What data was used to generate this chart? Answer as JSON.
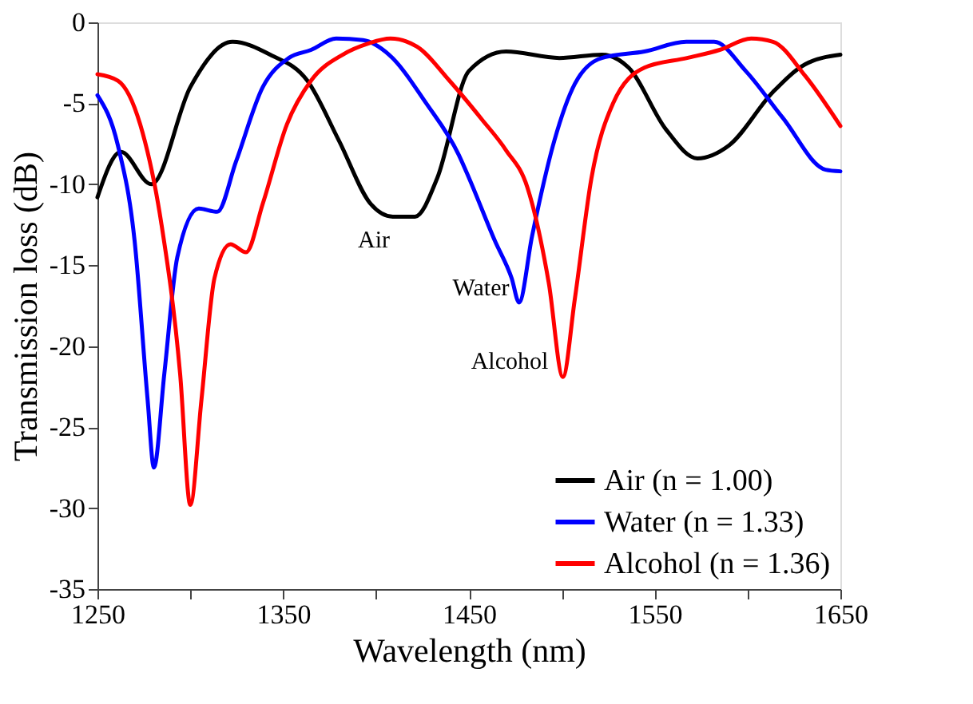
{
  "chart_data": {
    "type": "line",
    "xlabel": "Wavelength (nm)",
    "ylabel": "Transmission loss (dB)",
    "xlim": [
      1250,
      1650
    ],
    "xticks": [
      1250,
      {
        "value": 1300,
        "label": null
      },
      1350,
      {
        "value": 1400,
        "label": null
      },
      1450,
      {
        "value": 1500,
        "label": null
      },
      1550,
      {
        "value": 1600,
        "label": null
      },
      1650
    ],
    "ylim": [
      -35,
      0
    ],
    "yticks": [
      -35,
      -30,
      -25,
      -20,
      -15,
      -10,
      -5,
      0
    ],
    "legend": "bottom right",
    "grid": false,
    "marker": "none",
    "line_style": "solid",
    "series": [
      {
        "name": "Air (n = 1.00)",
        "color": "#000000",
        "x": [
          1250,
          1262.6,
          1279,
          1300,
          1322.7,
          1343,
          1363,
          1380,
          1397,
          1409,
          1421,
          1433,
          1450,
          1470,
          1498.7,
          1521.6,
          1536,
          1556,
          1573,
          1590,
          1613.7,
          1630.9,
          1650
        ],
        "values": [
          -10.8,
          -8.0,
          -10.0,
          -4.0,
          -1.2,
          -2.0,
          -3.6,
          -7.3,
          -11.2,
          -12.0,
          -12.0,
          -9.6,
          -3.0,
          -1.8,
          -2.2,
          -2.0,
          -2.8,
          -6.6,
          -8.4,
          -7.6,
          -4.3,
          -2.6,
          -2.0
        ]
      },
      {
        "name": "Water (n = 1.33)",
        "color": "#0000ff",
        "x": [
          1250,
          1261,
          1270,
          1277,
          1280.4,
          1286,
          1293,
          1304.5,
          1314.5,
          1324.6,
          1339,
          1353,
          1365,
          1378.5,
          1393,
          1407,
          1427,
          1444.6,
          1450,
          1464,
          1473,
          1477,
          1484,
          1496,
          1507,
          1521.6,
          1544.5,
          1567,
          1582,
          1599,
          1619,
          1642,
          1650
        ],
        "values": [
          -4.5,
          -7.6,
          -13.5,
          -23.3,
          -27.5,
          -21.7,
          -14.5,
          -11.5,
          -11.7,
          -8.6,
          -4.0,
          -2.2,
          -1.7,
          -1.0,
          -1.1,
          -2.0,
          -5.0,
          -8.2,
          -9.6,
          -13.5,
          -15.8,
          -17.3,
          -13.2,
          -7.3,
          -3.8,
          -2.2,
          -1.8,
          -1.2,
          -1.2,
          -3.0,
          -5.9,
          -9.1,
          -9.2
        ]
      },
      {
        "name": "Alcohol (n = 1.36)",
        "color": "#ff0000",
        "x": [
          1250,
          1261,
          1273,
          1284.5,
          1294.5,
          1300,
          1306,
          1313,
          1321.6,
          1330,
          1339,
          1352,
          1365,
          1382,
          1396,
          1407.7,
          1422,
          1439.5,
          1457,
          1470,
          1481.5,
          1493,
          1500.6,
          1507,
          1516,
          1527.6,
          1544.5,
          1567.5,
          1585,
          1602,
          1613.7,
          1631,
          1650
        ],
        "values": [
          -3.2,
          -3.6,
          -6.3,
          -12.5,
          -21.7,
          -29.8,
          -23.3,
          -15.8,
          -13.7,
          -14.2,
          -11.2,
          -6.3,
          -3.6,
          -2.0,
          -1.3,
          -1.0,
          -1.5,
          -3.6,
          -6.0,
          -7.9,
          -10.2,
          -16.1,
          -21.9,
          -17.1,
          -9.6,
          -5.0,
          -2.8,
          -2.2,
          -1.7,
          -1.0,
          -1.2,
          -3.3,
          -6.4
        ]
      }
    ],
    "annotations": [
      "Air",
      "Water",
      "Alcohol"
    ]
  }
}
